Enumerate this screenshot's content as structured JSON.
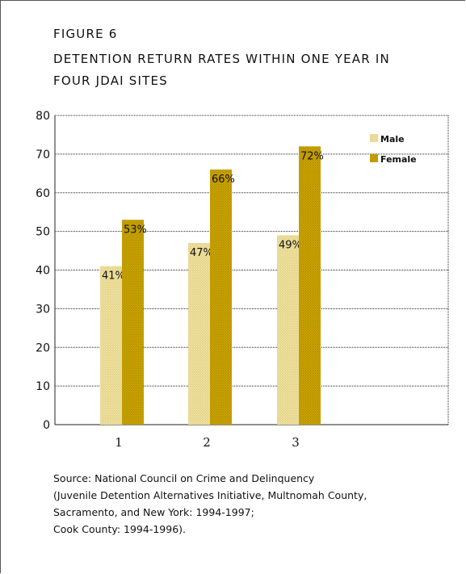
{
  "figure_label": "FIGURE 6",
  "title": "DETENTION RETURN RATES WITHIN ONE YEAR IN FOUR JDAI SITES",
  "source_lines": [
    "Source: National Council on Crime and Delinquency",
    "(Juvenile Detention Alternatives Initiative, Multnomah County,",
    "Sacramento, and New York: 1994-1997;",
    "Cook County: 1994-1996)."
  ],
  "colors": {
    "male": "#e6d68a",
    "female": "#c8a200",
    "grid": "#222222",
    "text": "#111111"
  },
  "chart_data": {
    "type": "bar",
    "title": "DETENTION RETURN RATES WITHIN ONE YEAR IN FOUR JDAI SITES",
    "xlabel": "",
    "ylabel": "",
    "categories": [
      "1",
      "2",
      "3"
    ],
    "series": [
      {
        "name": "Male",
        "values": [
          41,
          47,
          49
        ],
        "labels": [
          "41%",
          "47%",
          "49%"
        ]
      },
      {
        "name": "Female",
        "values": [
          53,
          66,
          72
        ],
        "labels": [
          "53%",
          "66%",
          "72%"
        ]
      }
    ],
    "ylim": [
      0,
      80
    ],
    "yticks": [
      0,
      10,
      20,
      30,
      40,
      50,
      60,
      70,
      80
    ],
    "grid": true,
    "legend_position": "top-right"
  }
}
